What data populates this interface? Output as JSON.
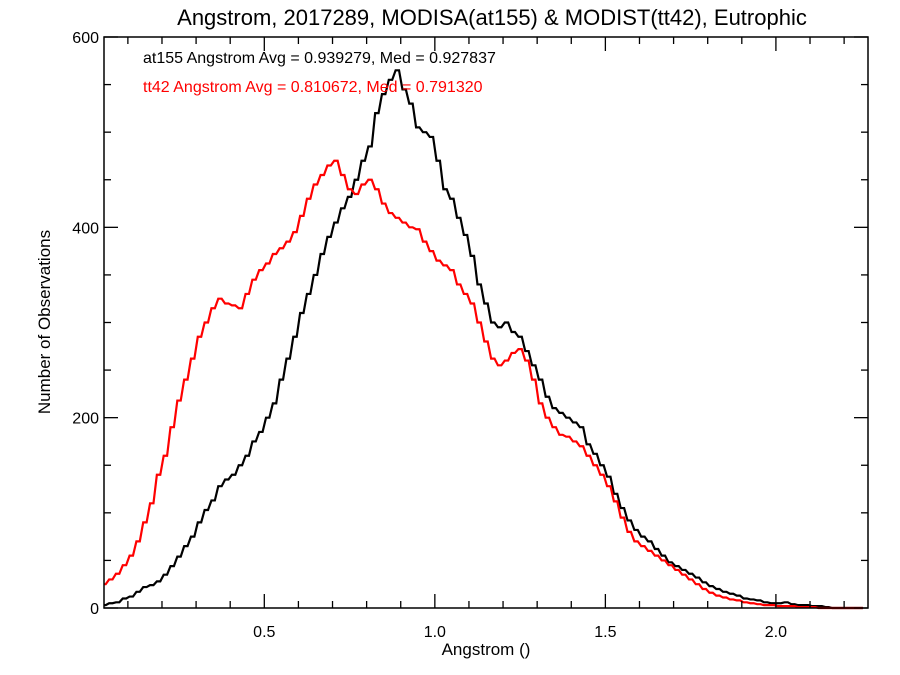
{
  "chart_data": {
    "type": "line",
    "step": true,
    "title": "Angstrom, 2017289, MODISA(at155) & MODIST(tt42), Eutrophic",
    "xlabel": "Angstrom ()",
    "ylabel": "Number of Observations",
    "xlim": [
      0.03,
      2.27
    ],
    "ylim": [
      0,
      600
    ],
    "xticks": [
      0.5,
      1.0,
      1.5,
      2.0
    ],
    "xtick_labels": [
      "0.5",
      "1.0",
      "1.5",
      "2.0"
    ],
    "yticks": [
      0,
      200,
      400,
      600
    ],
    "ytick_labels": [
      "0",
      "200",
      "400",
      "600"
    ],
    "grid": false,
    "bin_width": 0.01,
    "annotations": [
      {
        "text": "at155 Angstrom Avg = 0.939279, Med = 0.927837",
        "color": "#000000"
      },
      {
        "text": "tt42 Angstrom Avg = 0.810672, Med = 0.791320",
        "color": "#ff0000"
      }
    ],
    "series": [
      {
        "color": "#000000",
        "x": [
          0.03,
          0.05,
          0.07,
          0.09,
          0.11,
          0.13,
          0.15,
          0.17,
          0.19,
          0.21,
          0.23,
          0.25,
          0.27,
          0.29,
          0.31,
          0.33,
          0.35,
          0.37,
          0.39,
          0.41,
          0.43,
          0.45,
          0.47,
          0.49,
          0.51,
          0.53,
          0.55,
          0.57,
          0.59,
          0.61,
          0.63,
          0.65,
          0.67,
          0.69,
          0.71,
          0.73,
          0.75,
          0.77,
          0.79,
          0.81,
          0.83,
          0.85,
          0.87,
          0.89,
          0.91,
          0.93,
          0.95,
          0.97,
          0.99,
          1.01,
          1.03,
          1.05,
          1.07,
          1.09,
          1.11,
          1.13,
          1.15,
          1.17,
          1.19,
          1.21,
          1.23,
          1.25,
          1.27,
          1.29,
          1.31,
          1.33,
          1.35,
          1.37,
          1.39,
          1.41,
          1.43,
          1.45,
          1.47,
          1.49,
          1.51,
          1.53,
          1.55,
          1.57,
          1.59,
          1.61,
          1.63,
          1.65,
          1.67,
          1.69,
          1.71,
          1.73,
          1.75,
          1.77,
          1.79,
          1.81,
          1.83,
          1.85,
          1.87,
          1.89,
          1.91,
          1.93,
          1.95,
          1.97,
          1.99,
          2.01,
          2.03,
          2.05,
          2.07,
          2.09,
          2.11,
          2.13,
          2.15,
          2.17,
          2.19,
          2.21,
          2.23,
          2.25
        ],
        "values": [
          3,
          5,
          6,
          10,
          12,
          17,
          22,
          24,
          28,
          35,
          44,
          54,
          65,
          75,
          90,
          103,
          113,
          128,
          135,
          140,
          150,
          160,
          175,
          185,
          200,
          215,
          240,
          262,
          285,
          310,
          330,
          350,
          372,
          390,
          405,
          420,
          432,
          450,
          470,
          485,
          520,
          540,
          555,
          565,
          545,
          530,
          505,
          500,
          495,
          470,
          440,
          430,
          410,
          392,
          370,
          340,
          320,
          300,
          295,
          300,
          290,
          285,
          270,
          255,
          240,
          222,
          210,
          205,
          200,
          195,
          190,
          172,
          162,
          150,
          138,
          120,
          105,
          92,
          82,
          75,
          70,
          62,
          55,
          48,
          44,
          40,
          36,
          32,
          27,
          23,
          20,
          17,
          15,
          13,
          10,
          9,
          8,
          6,
          5,
          5,
          6,
          4,
          3,
          3,
          2,
          2,
          1,
          0,
          0,
          0,
          0,
          0
        ]
      },
      {
        "color": "#ff0000",
        "x": [
          0.03,
          0.05,
          0.07,
          0.09,
          0.11,
          0.13,
          0.15,
          0.17,
          0.19,
          0.21,
          0.23,
          0.25,
          0.27,
          0.29,
          0.31,
          0.33,
          0.35,
          0.37,
          0.39,
          0.41,
          0.43,
          0.45,
          0.47,
          0.49,
          0.51,
          0.53,
          0.55,
          0.57,
          0.59,
          0.61,
          0.63,
          0.65,
          0.67,
          0.69,
          0.71,
          0.73,
          0.75,
          0.77,
          0.79,
          0.81,
          0.83,
          0.85,
          0.87,
          0.89,
          0.91,
          0.93,
          0.95,
          0.97,
          0.99,
          1.01,
          1.03,
          1.05,
          1.07,
          1.09,
          1.11,
          1.13,
          1.15,
          1.17,
          1.19,
          1.21,
          1.23,
          1.25,
          1.27,
          1.29,
          1.31,
          1.33,
          1.35,
          1.37,
          1.39,
          1.41,
          1.43,
          1.45,
          1.47,
          1.49,
          1.51,
          1.53,
          1.55,
          1.57,
          1.59,
          1.61,
          1.63,
          1.65,
          1.67,
          1.69,
          1.71,
          1.73,
          1.75,
          1.77,
          1.79,
          1.81,
          1.83,
          1.85,
          1.87,
          1.89,
          1.91,
          1.93,
          1.95,
          1.97,
          1.99,
          2.01,
          2.03,
          2.05,
          2.07,
          2.09,
          2.11,
          2.13,
          2.15,
          2.17,
          2.19,
          2.21,
          2.23,
          2.25
        ],
        "values": [
          25,
          30,
          36,
          45,
          55,
          70,
          90,
          110,
          140,
          160,
          190,
          218,
          240,
          262,
          285,
          300,
          315,
          325,
          320,
          318,
          315,
          330,
          345,
          355,
          362,
          372,
          378,
          385,
          395,
          412,
          430,
          445,
          455,
          465,
          470,
          455,
          440,
          435,
          445,
          450,
          440,
          425,
          415,
          410,
          405,
          400,
          398,
          385,
          375,
          365,
          360,
          355,
          340,
          330,
          320,
          300,
          280,
          262,
          255,
          260,
          268,
          272,
          260,
          240,
          215,
          200,
          190,
          182,
          180,
          175,
          170,
          160,
          150,
          140,
          128,
          112,
          95,
          80,
          70,
          65,
          60,
          55,
          50,
          45,
          40,
          35,
          30,
          25,
          20,
          16,
          13,
          11,
          9,
          8,
          6,
          5,
          4,
          3,
          3,
          2,
          2,
          2,
          1,
          1,
          1,
          0,
          0,
          0,
          0,
          0,
          0,
          0
        ]
      }
    ]
  }
}
